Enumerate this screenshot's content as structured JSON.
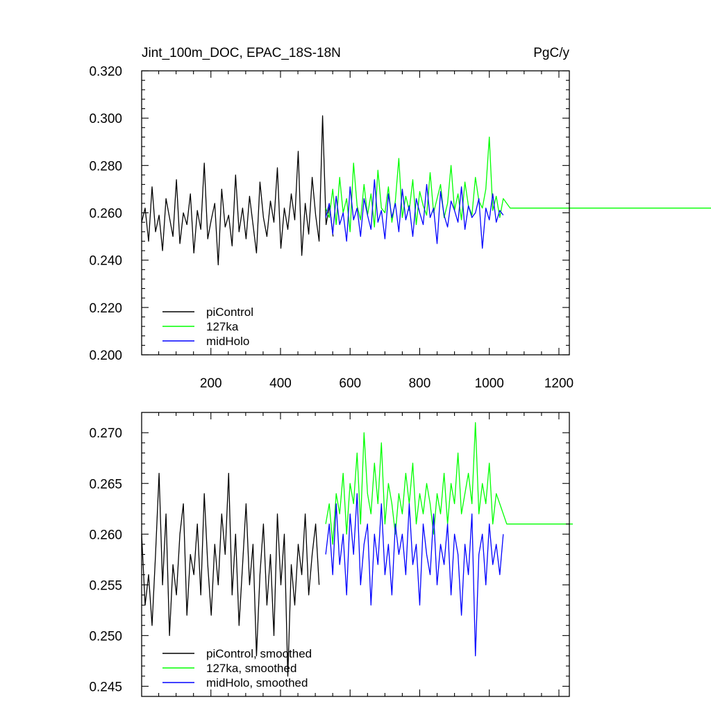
{
  "chart_data": [
    {
      "type": "line",
      "title_left": "Jint_100m_DOC, EPAC_18S-18N",
      "title_right": "PgC/y",
      "xlabel": "",
      "ylabel": "",
      "xlim": [
        1,
        1230
      ],
      "ylim": [
        0.2,
        0.32
      ],
      "x_ticks": [
        200,
        400,
        600,
        800,
        1000,
        1200
      ],
      "x_tick_labels": [
        "200",
        "400",
        "600",
        "800",
        "1000",
        "1200"
      ],
      "y_ticks": [
        0.2,
        0.22,
        0.24,
        0.26,
        0.28,
        0.3,
        0.32
      ],
      "y_tick_labels": [
        "0.200",
        "0.220",
        "0.240",
        "0.260",
        "0.280",
        "0.300",
        "0.320"
      ],
      "grid": false,
      "legend_position": "bottom-left",
      "series": [
        {
          "name": "piControl",
          "color": "#000000",
          "x_start": 1,
          "x_step": 10,
          "values": [
            0.256,
            0.262,
            0.248,
            0.271,
            0.252,
            0.259,
            0.244,
            0.266,
            0.258,
            0.25,
            0.274,
            0.247,
            0.26,
            0.255,
            0.268,
            0.243,
            0.261,
            0.253,
            0.281,
            0.249,
            0.257,
            0.264,
            0.238,
            0.27,
            0.254,
            0.259,
            0.246,
            0.276,
            0.252,
            0.262,
            0.249,
            0.267,
            0.255,
            0.243,
            0.273,
            0.258,
            0.25,
            0.265,
            0.256,
            0.279,
            0.245,
            0.262,
            0.253,
            0.268,
            0.257,
            0.286,
            0.242,
            0.264,
            0.251,
            0.275,
            0.259,
            0.248,
            0.301,
            0.255,
            0.263,
            0.25
          ]
        },
        {
          "name": "127ka",
          "color": "#00ff00",
          "x_start": 530,
          "x_step": 10,
          "values": [
            0.262,
            0.258,
            0.27,
            0.255,
            0.275,
            0.26,
            0.266,
            0.252,
            0.281,
            0.263,
            0.257,
            0.272,
            0.259,
            0.268,
            0.254,
            0.278,
            0.262,
            0.26,
            0.271,
            0.256,
            0.265,
            0.283,
            0.258,
            0.267,
            0.261,
            0.274,
            0.255,
            0.269,
            0.263,
            0.259,
            0.277,
            0.26,
            0.266,
            0.272,
            0.258,
            0.264,
            0.28,
            0.261,
            0.268,
            0.257,
            0.273,
            0.263,
            0.259,
            0.275,
            0.265,
            0.262,
            0.27,
            0.292,
            0.261,
            0.267,
            0.258,
            0.266,
            0.264,
            0.262,
            0.262,
            0.262,
            0.262,
            0.262,
            0.262,
            0.262,
            0.262,
            0.262,
            0.262,
            0.262,
            0.262,
            0.262,
            0.262,
            0.262,
            0.262,
            0.262,
            0.262,
            0.262,
            0.262,
            0.262,
            0.262,
            0.262,
            0.262,
            0.262,
            0.262,
            0.262,
            0.262,
            0.262,
            0.262,
            0.262,
            0.262,
            0.262,
            0.262,
            0.262,
            0.262,
            0.262,
            0.262,
            0.262,
            0.262,
            0.262,
            0.262,
            0.262,
            0.262,
            0.262,
            0.262,
            0.262,
            0.262,
            0.262,
            0.262,
            0.262,
            0.262,
            0.262,
            0.262,
            0.262,
            0.262,
            0.262,
            0.262,
            0.262
          ]
        },
        {
          "name": "midHolo",
          "color": "#0000ff",
          "x_start": 530,
          "x_step": 10,
          "values": [
            0.258,
            0.264,
            0.251,
            0.267,
            0.255,
            0.26,
            0.248,
            0.271,
            0.257,
            0.262,
            0.25,
            0.266,
            0.259,
            0.253,
            0.274,
            0.256,
            0.261,
            0.249,
            0.268,
            0.258,
            0.264,
            0.252,
            0.27,
            0.257,
            0.263,
            0.25,
            0.266,
            0.26,
            0.255,
            0.272,
            0.258,
            0.262,
            0.247,
            0.269,
            0.259,
            0.254,
            0.265,
            0.261,
            0.256,
            0.271,
            0.253,
            0.263,
            0.258,
            0.26,
            0.266,
            0.245,
            0.262,
            0.257,
            0.268,
            0.256,
            0.261,
            0.259
          ]
        }
      ]
    },
    {
      "type": "line",
      "xlabel": "",
      "ylabel": "",
      "xlim": [
        1,
        1230
      ],
      "ylim": [
        0.244,
        0.272
      ],
      "x_ticks": [
        200,
        400,
        600,
        800,
        1000,
        1200
      ],
      "x_tick_labels": [],
      "y_ticks": [
        0.245,
        0.25,
        0.255,
        0.26,
        0.265,
        0.27
      ],
      "y_tick_labels": [
        "0.245",
        "0.250",
        "0.255",
        "0.260",
        "0.265",
        "0.270"
      ],
      "grid": false,
      "legend_position": "bottom-left",
      "series": [
        {
          "name": "piControl, smoothed",
          "color": "#000000",
          "x_start": 1,
          "x_step": 10,
          "values": [
            0.26,
            0.253,
            0.256,
            0.251,
            0.258,
            0.266,
            0.255,
            0.262,
            0.25,
            0.257,
            0.254,
            0.26,
            0.263,
            0.252,
            0.258,
            0.256,
            0.261,
            0.254,
            0.264,
            0.257,
            0.252,
            0.259,
            0.255,
            0.262,
            0.258,
            0.266,
            0.254,
            0.26,
            0.251,
            0.257,
            0.263,
            0.255,
            0.259,
            0.248,
            0.256,
            0.261,
            0.253,
            0.258,
            0.25,
            0.262,
            0.255,
            0.26,
            0.246,
            0.257,
            0.253,
            0.259,
            0.256,
            0.262,
            0.254,
            0.258,
            0.261,
            0.255
          ]
        },
        {
          "name": "127ka, smoothed",
          "color": "#00ff00",
          "x_start": 530,
          "x_step": 10,
          "values": [
            0.261,
            0.263,
            0.259,
            0.264,
            0.262,
            0.266,
            0.26,
            0.265,
            0.263,
            0.268,
            0.261,
            0.27,
            0.264,
            0.262,
            0.267,
            0.263,
            0.269,
            0.261,
            0.265,
            0.263,
            0.26,
            0.264,
            0.262,
            0.266,
            0.263,
            0.267,
            0.261,
            0.264,
            0.262,
            0.265,
            0.263,
            0.26,
            0.264,
            0.262,
            0.266,
            0.261,
            0.265,
            0.263,
            0.268,
            0.262,
            0.264,
            0.266,
            0.263,
            0.271,
            0.262,
            0.265,
            0.263,
            0.267,
            0.261,
            0.264,
            0.263,
            0.262,
            0.261,
            0.261,
            0.261,
            0.261,
            0.261,
            0.261,
            0.261,
            0.261,
            0.261,
            0.261,
            0.261,
            0.261,
            0.261,
            0.261,
            0.261,
            0.261,
            0.261,
            0.261,
            0.261,
            0.261
          ]
        },
        {
          "name": "midHolo, smoothed",
          "color": "#0000ff",
          "x_start": 530,
          "x_step": 10,
          "values": [
            0.258,
            0.261,
            0.256,
            0.263,
            0.257,
            0.26,
            0.254,
            0.262,
            0.258,
            0.264,
            0.255,
            0.259,
            0.261,
            0.253,
            0.26,
            0.257,
            0.263,
            0.256,
            0.259,
            0.254,
            0.261,
            0.258,
            0.26,
            0.256,
            0.263,
            0.257,
            0.259,
            0.253,
            0.261,
            0.258,
            0.256,
            0.262,
            0.255,
            0.259,
            0.257,
            0.261,
            0.254,
            0.26,
            0.258,
            0.252,
            0.259,
            0.256,
            0.262,
            0.248,
            0.258,
            0.26,
            0.255,
            0.261,
            0.257,
            0.259,
            0.256,
            0.26
          ]
        }
      ]
    }
  ]
}
